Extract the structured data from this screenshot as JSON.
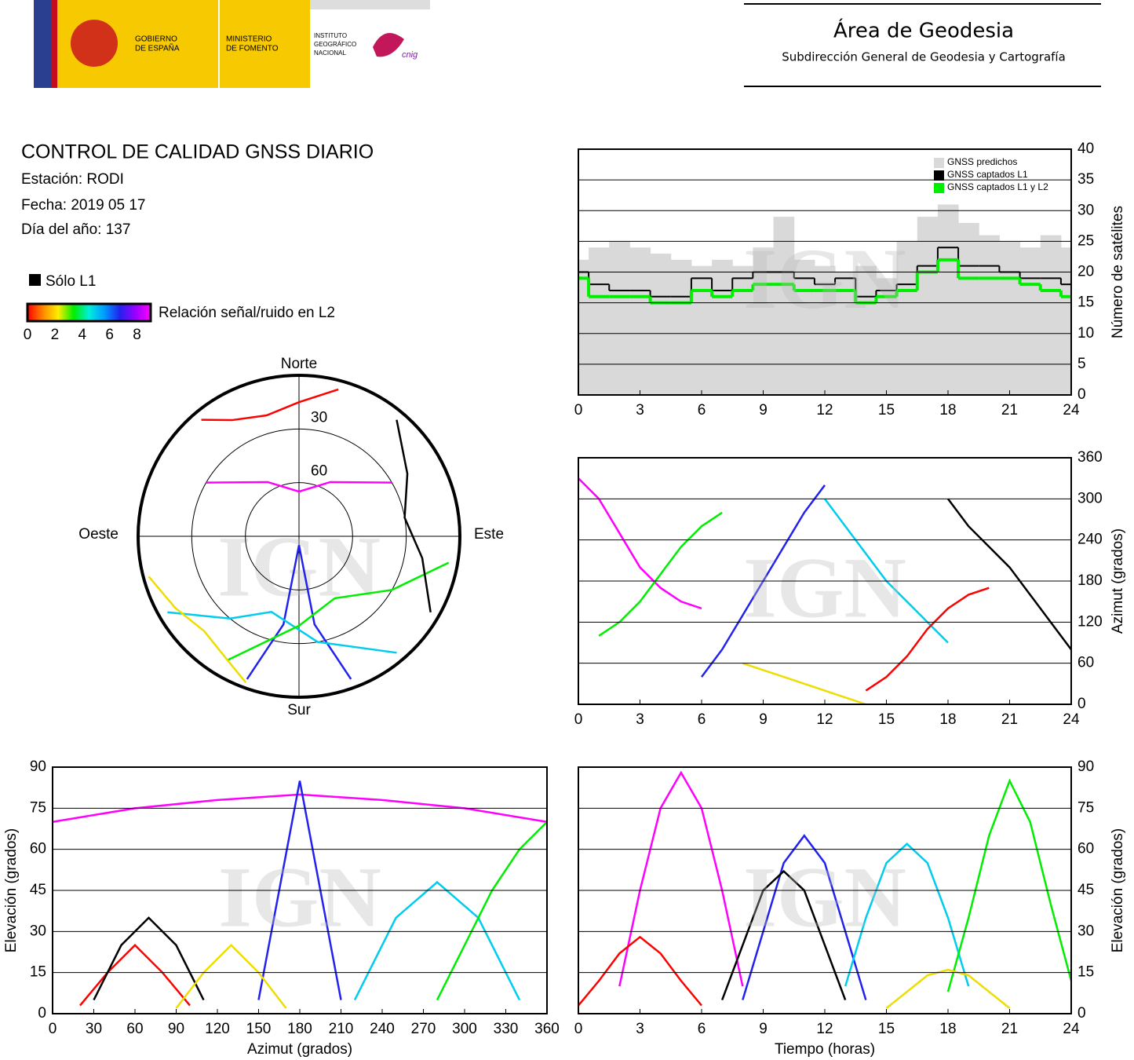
{
  "header": {
    "gobierno": [
      "GOBIERNO",
      "DE ESPAÑA"
    ],
    "ministerio": [
      "MINISTERIO",
      "DE FOMENTO"
    ],
    "instituto": [
      "INSTITUTO",
      "GEOGRÁFICO",
      "NACIONAL"
    ],
    "cnig": "cnig",
    "area": "Área de Geodesia",
    "subdireccion": "Subdirección General de Geodesia y Cartografía"
  },
  "info": {
    "title": "CONTROL DE CALIDAD GNSS DIARIO",
    "station": "Estación: RODI",
    "date": "Fecha: 2019 05 17",
    "doy": "Día del año: 137"
  },
  "legend": {
    "l1_only": "Sólo L1",
    "l1_color": "#000000",
    "snr_title": "Relación señal/ruido en L2",
    "snr_ticks": [
      0,
      2,
      4,
      6,
      8
    ],
    "snr_lim": [
      0,
      9
    ],
    "snr_colors": [
      "#ff0000",
      "#ff8800",
      "#ffee00",
      "#00ee00",
      "#00eedd",
      "#0099ff",
      "#2222ee",
      "#9900ff",
      "#ff00ff"
    ]
  },
  "watermark": "IGN",
  "chart_data": [
    {
      "type": "polar",
      "labels": {
        "north": "Norte",
        "south": "Sur",
        "west": "Oeste",
        "east": "Este"
      },
      "rticks": [
        30,
        60
      ],
      "series": [
        {
          "color": "#ff00ff",
          "az": [
            300,
            330,
            0,
            30,
            60
          ],
          "el": [
            30,
            55,
            65,
            55,
            30
          ]
        },
        {
          "color": "#2222ee",
          "az": [
            200,
            190,
            180,
            170,
            160
          ],
          "el": [
            5,
            40,
            85,
            40,
            5
          ]
        },
        {
          "color": "#00ccee",
          "az": [
            240,
            220,
            200,
            170,
            140
          ],
          "el": [
            5,
            30,
            45,
            30,
            5
          ]
        },
        {
          "color": "#00ee00",
          "az": [
            100,
            120,
            150,
            180,
            210
          ],
          "el": [
            5,
            30,
            50,
            40,
            10
          ]
        },
        {
          "color": "#ff0000",
          "az": [
            320,
            330,
            345,
            0,
            15
          ],
          "el": [
            5,
            15,
            20,
            15,
            5
          ]
        },
        {
          "color": "#000000",
          "az": [
            40,
            60,
            80,
            100,
            120
          ],
          "el": [
            5,
            20,
            30,
            20,
            5
          ]
        },
        {
          "color": "#eedd00",
          "az": [
            200,
            210,
            225,
            240,
            255
          ],
          "el": [
            3,
            10,
            15,
            10,
            3
          ]
        }
      ]
    },
    {
      "type": "step",
      "ylabel": "Número de satélites",
      "xlim": [
        0,
        24
      ],
      "xticks": [
        0,
        3,
        6,
        9,
        12,
        15,
        18,
        21,
        24
      ],
      "ylim": [
        0,
        40
      ],
      "yticks": [
        0,
        5,
        10,
        15,
        20,
        25,
        30,
        35,
        40
      ],
      "grid": true,
      "legend": "top-right",
      "x": [
        0,
        1,
        2,
        3,
        4,
        5,
        6,
        7,
        8,
        9,
        10,
        11,
        12,
        13,
        14,
        15,
        16,
        17,
        18,
        19,
        20,
        21,
        22,
        23,
        24
      ],
      "series": [
        {
          "name": "GNSS predichos",
          "color": "#d9d9d9",
          "fill": true,
          "values": [
            22,
            24,
            25,
            24,
            23,
            22,
            21,
            22,
            21,
            24,
            29,
            22,
            21,
            20,
            21,
            19,
            25,
            29,
            31,
            28,
            26,
            25,
            24,
            26,
            24
          ]
        },
        {
          "name": "GNSS captados L1",
          "color": "#000000",
          "values": [
            20,
            18,
            17,
            17,
            16,
            16,
            19,
            17,
            19,
            20,
            20,
            19,
            18,
            19,
            16,
            17,
            18,
            21,
            24,
            21,
            21,
            20,
            19,
            19,
            18
          ]
        },
        {
          "name": "GNSS captados L1 y L2",
          "color": "#00ee00",
          "values": [
            19,
            16,
            16,
            16,
            15,
            15,
            17,
            16,
            17,
            18,
            18,
            17,
            17,
            17,
            15,
            16,
            17,
            20,
            22,
            19,
            19,
            19,
            18,
            17,
            16
          ]
        }
      ]
    },
    {
      "type": "line",
      "ylabel": "Azimut (grados)",
      "xlim": [
        0,
        24
      ],
      "xticks": [
        0,
        3,
        6,
        9,
        12,
        15,
        18,
        21,
        24
      ],
      "ylim": [
        0,
        360
      ],
      "yticks": [
        0,
        60,
        120,
        180,
        240,
        300,
        360
      ],
      "grid": true,
      "series": [
        {
          "color": "#ff00ff",
          "x": [
            0,
            1,
            2,
            3,
            4,
            5,
            6
          ],
          "values": [
            330,
            300,
            250,
            200,
            170,
            150,
            140
          ]
        },
        {
          "color": "#2222ee",
          "x": [
            6,
            7,
            8,
            9,
            10,
            11,
            12
          ],
          "values": [
            40,
            80,
            130,
            180,
            230,
            280,
            320
          ]
        },
        {
          "color": "#00ccee",
          "x": [
            12,
            13,
            14,
            15,
            16,
            17,
            18
          ],
          "values": [
            300,
            260,
            220,
            180,
            150,
            120,
            90
          ]
        },
        {
          "color": "#00ee00",
          "x": [
            1,
            2,
            3,
            4,
            5,
            6,
            7
          ],
          "values": [
            100,
            120,
            150,
            190,
            230,
            260,
            280
          ]
        },
        {
          "color": "#ff0000",
          "x": [
            14,
            15,
            16,
            17,
            18,
            19,
            20
          ],
          "values": [
            20,
            40,
            70,
            110,
            140,
            160,
            170
          ]
        },
        {
          "color": "#000000",
          "x": [
            18,
            19,
            20,
            21,
            22,
            23,
            24
          ],
          "values": [
            300,
            260,
            230,
            200,
            160,
            120,
            80
          ]
        },
        {
          "color": "#eedd00",
          "x": [
            8,
            9,
            10,
            11,
            12,
            13,
            14
          ],
          "values": [
            60,
            50,
            40,
            30,
            20,
            10,
            0
          ]
        }
      ]
    },
    {
      "type": "line",
      "xlabel": "Azimut (grados)",
      "ylabel": "Elevación (grados)",
      "xlim": [
        0,
        360
      ],
      "xticks": [
        0,
        30,
        60,
        90,
        120,
        150,
        180,
        210,
        240,
        270,
        300,
        330,
        360
      ],
      "ylim": [
        0,
        90
      ],
      "yticks": [
        0,
        15,
        30,
        45,
        60,
        75,
        90
      ],
      "grid": true,
      "series": [
        {
          "color": "#ff00ff",
          "x": [
            0,
            60,
            120,
            180,
            240,
            300,
            360
          ],
          "values": [
            70,
            75,
            78,
            80,
            78,
            75,
            70
          ]
        },
        {
          "color": "#2222ee",
          "x": [
            150,
            165,
            180,
            195,
            210
          ],
          "values": [
            5,
            45,
            85,
            45,
            5
          ]
        },
        {
          "color": "#00ccee",
          "x": [
            220,
            250,
            280,
            310,
            340
          ],
          "values": [
            5,
            35,
            48,
            35,
            5
          ]
        },
        {
          "color": "#00ee00",
          "x": [
            280,
            300,
            320,
            340,
            360
          ],
          "values": [
            5,
            25,
            45,
            60,
            70
          ]
        },
        {
          "color": "#ff0000",
          "x": [
            20,
            40,
            60,
            80,
            100
          ],
          "values": [
            3,
            15,
            25,
            15,
            3
          ]
        },
        {
          "color": "#000000",
          "x": [
            30,
            50,
            70,
            90,
            110
          ],
          "values": [
            5,
            25,
            35,
            25,
            5
          ]
        },
        {
          "color": "#eedd00",
          "x": [
            90,
            110,
            130,
            150,
            170
          ],
          "values": [
            2,
            15,
            25,
            15,
            2
          ]
        }
      ]
    },
    {
      "type": "line",
      "xlabel": "Tiempo (horas)",
      "ylabel": "Elevación (grados)",
      "xlim": [
        0,
        24
      ],
      "xticks": [
        0,
        3,
        6,
        9,
        12,
        15,
        18,
        21,
        24
      ],
      "ylim": [
        0,
        90
      ],
      "yticks": [
        0,
        15,
        30,
        45,
        60,
        75,
        90
      ],
      "grid": true,
      "series": [
        {
          "color": "#ff00ff",
          "x": [
            2,
            3,
            4,
            5,
            6,
            7,
            8
          ],
          "values": [
            10,
            45,
            75,
            88,
            75,
            45,
            10
          ]
        },
        {
          "color": "#2222ee",
          "x": [
            8,
            9,
            10,
            11,
            12,
            13,
            14
          ],
          "values": [
            5,
            30,
            55,
            65,
            55,
            30,
            5
          ]
        },
        {
          "color": "#00ccee",
          "x": [
            13,
            14,
            15,
            16,
            17,
            18,
            19
          ],
          "values": [
            10,
            35,
            55,
            62,
            55,
            35,
            10
          ]
        },
        {
          "color": "#00ee00",
          "x": [
            18,
            19,
            20,
            21,
            22,
            23,
            24
          ],
          "values": [
            8,
            35,
            65,
            85,
            70,
            40,
            12
          ]
        },
        {
          "color": "#ff0000",
          "x": [
            0,
            1,
            2,
            3,
            4,
            5,
            6
          ],
          "values": [
            3,
            12,
            22,
            28,
            22,
            12,
            3
          ]
        },
        {
          "color": "#000000",
          "x": [
            7,
            8,
            9,
            10,
            11,
            12,
            13
          ],
          "values": [
            5,
            25,
            45,
            52,
            45,
            25,
            5
          ]
        },
        {
          "color": "#eedd00",
          "x": [
            15,
            16,
            17,
            18,
            19,
            20,
            21
          ],
          "values": [
            2,
            8,
            14,
            16,
            14,
            8,
            2
          ]
        }
      ]
    }
  ]
}
